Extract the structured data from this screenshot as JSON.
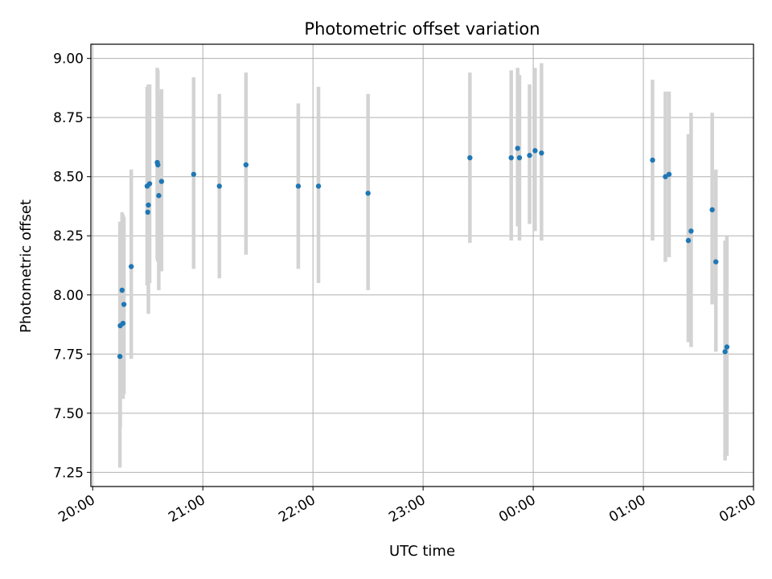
{
  "chart_data": {
    "type": "scatter",
    "title": "Photometric offset variation",
    "xlabel": "UTC time",
    "ylabel": "Photometric offset",
    "x_unit": "UTC time (hours)",
    "xlim": [
      "19:59",
      "02:00"
    ],
    "ylim": [
      7.19,
      9.06
    ],
    "x_ticks": [
      "20:00",
      "21:00",
      "22:00",
      "23:00",
      "00:00",
      "01:00",
      "02:00"
    ],
    "y_ticks": [
      "7.25",
      "7.50",
      "7.75",
      "8.00",
      "8.25",
      "8.50",
      "8.75",
      "9.00"
    ],
    "grid": true,
    "point_color": "#1f77b4",
    "errorbar_color": "#d3d3d3",
    "points": [
      {
        "x": "20:14:50",
        "y": 7.74,
        "ylo": 7.27,
        "yhi": 8.31
      },
      {
        "x": "20:15:00",
        "y": 7.87,
        "ylo": 7.44,
        "yhi": 8.3
      },
      {
        "x": "20:16:00",
        "y": 8.02,
        "ylo": 7.62,
        "yhi": 8.35
      },
      {
        "x": "20:16:30",
        "y": 7.88,
        "ylo": 7.56,
        "yhi": 8.34
      },
      {
        "x": "20:17:00",
        "y": 7.96,
        "ylo": 7.58,
        "yhi": 8.33
      },
      {
        "x": "20:21:00",
        "y": 8.12,
        "ylo": 7.73,
        "yhi": 8.53
      },
      {
        "x": "20:29:40",
        "y": 8.46,
        "ylo": 8.04,
        "yhi": 8.88
      },
      {
        "x": "20:30:00",
        "y": 8.35,
        "ylo": 8.06,
        "yhi": 8.86
      },
      {
        "x": "20:30:20",
        "y": 8.38,
        "ylo": 7.92,
        "yhi": 8.89
      },
      {
        "x": "20:31:00",
        "y": 8.47,
        "ylo": 8.05,
        "yhi": 8.89
      },
      {
        "x": "20:35:10",
        "y": 8.56,
        "ylo": 8.15,
        "yhi": 8.96
      },
      {
        "x": "20:35:30",
        "y": 8.55,
        "ylo": 8.14,
        "yhi": 8.95
      },
      {
        "x": "20:36:00",
        "y": 8.42,
        "ylo": 8.02,
        "yhi": 8.84
      },
      {
        "x": "20:37:30",
        "y": 8.48,
        "ylo": 8.1,
        "yhi": 8.87
      },
      {
        "x": "20:55:00",
        "y": 8.51,
        "ylo": 8.11,
        "yhi": 8.92
      },
      {
        "x": "21:09:00",
        "y": 8.46,
        "ylo": 8.07,
        "yhi": 8.85
      },
      {
        "x": "21:23:30",
        "y": 8.55,
        "ylo": 8.17,
        "yhi": 8.94
      },
      {
        "x": "21:52:00",
        "y": 8.46,
        "ylo": 8.11,
        "yhi": 8.81
      },
      {
        "x": "22:03:00",
        "y": 8.46,
        "ylo": 8.05,
        "yhi": 8.88
      },
      {
        "x": "22:30:00",
        "y": 8.43,
        "ylo": 8.02,
        "yhi": 8.85
      },
      {
        "x": "23:25:30",
        "y": 8.58,
        "ylo": 8.22,
        "yhi": 8.94
      },
      {
        "x": "23:48:00",
        "y": 8.58,
        "ylo": 8.23,
        "yhi": 8.95
      },
      {
        "x": "23:51:30",
        "y": 8.62,
        "ylo": 8.29,
        "yhi": 8.96
      },
      {
        "x": "23:52:30",
        "y": 8.58,
        "ylo": 8.23,
        "yhi": 8.93
      },
      {
        "x": "23:58:00",
        "y": 8.59,
        "ylo": 8.3,
        "yhi": 8.89
      },
      {
        "x": "00:01:00",
        "y": 8.61,
        "ylo": 8.27,
        "yhi": 8.96
      },
      {
        "x": "00:04:30",
        "y": 8.6,
        "ylo": 8.23,
        "yhi": 8.98
      },
      {
        "x": "01:05:00",
        "y": 8.57,
        "ylo": 8.23,
        "yhi": 8.91
      },
      {
        "x": "01:12:00",
        "y": 8.5,
        "ylo": 8.14,
        "yhi": 8.86
      },
      {
        "x": "01:14:00",
        "y": 8.51,
        "ylo": 8.16,
        "yhi": 8.86
      },
      {
        "x": "01:24:30",
        "y": 8.23,
        "ylo": 7.8,
        "yhi": 8.68
      },
      {
        "x": "01:26:00",
        "y": 8.27,
        "ylo": 7.78,
        "yhi": 8.77
      },
      {
        "x": "01:37:30",
        "y": 8.36,
        "ylo": 7.96,
        "yhi": 8.77
      },
      {
        "x": "01:39:30",
        "y": 8.14,
        "ylo": 7.76,
        "yhi": 8.53
      },
      {
        "x": "01:44:30",
        "y": 7.76,
        "ylo": 7.3,
        "yhi": 8.23
      },
      {
        "x": "01:45:30",
        "y": 7.78,
        "ylo": 7.32,
        "yhi": 8.25
      }
    ]
  }
}
